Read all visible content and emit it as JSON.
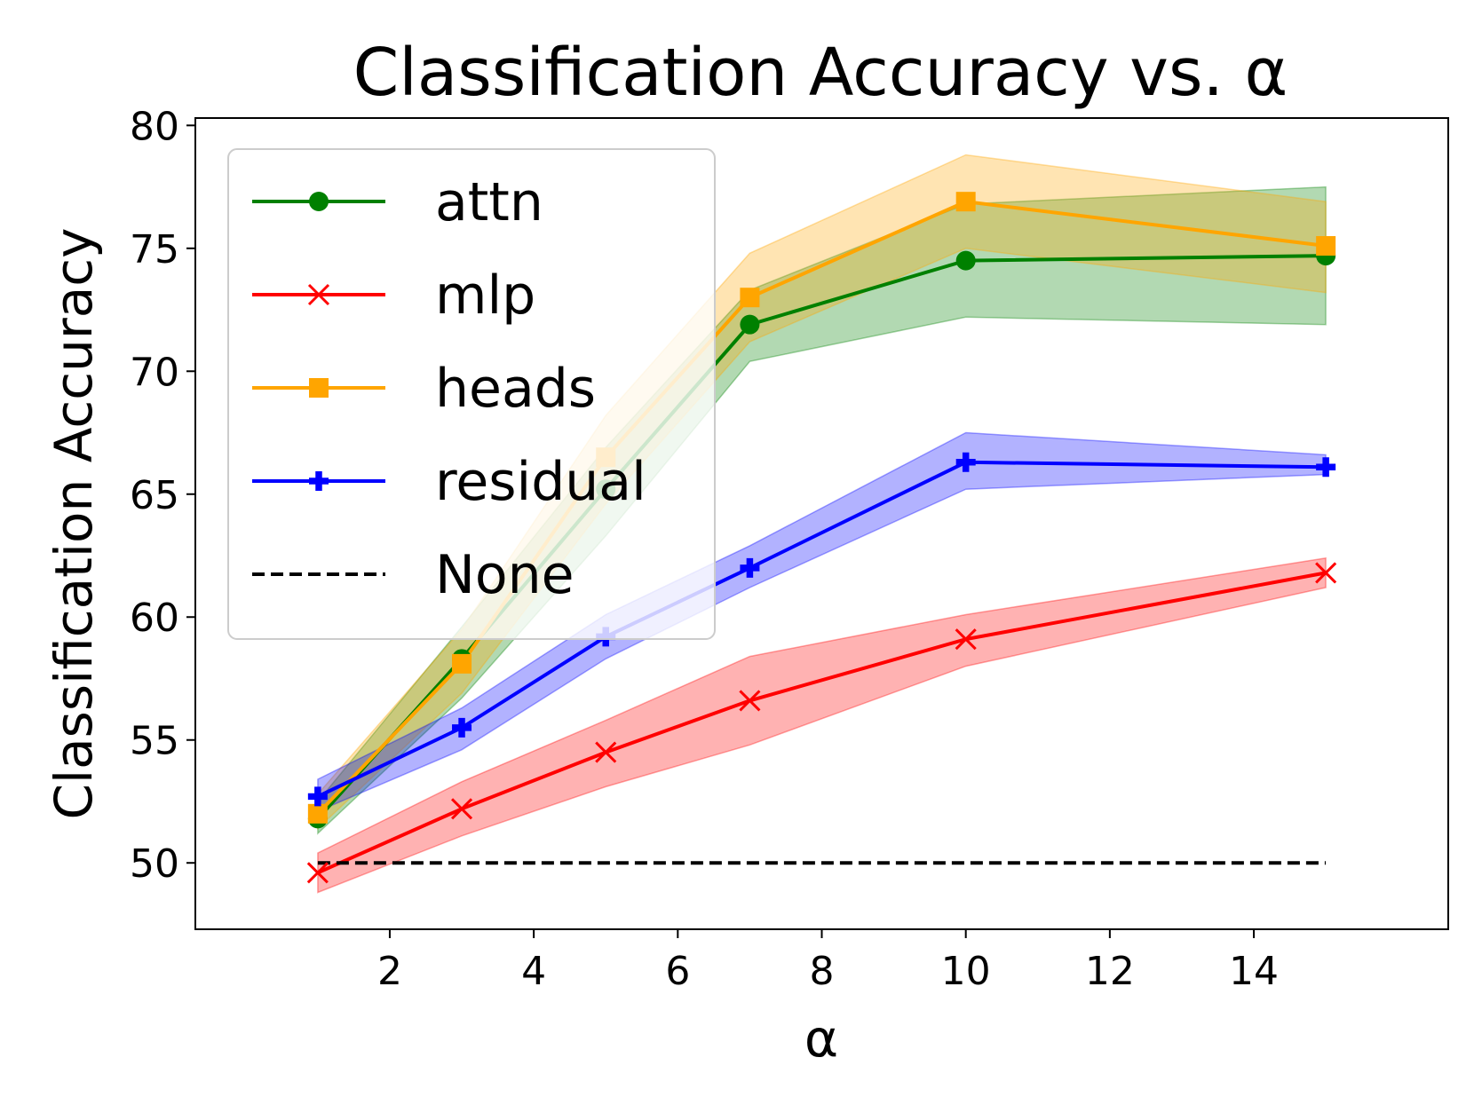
{
  "chart_data": {
    "type": "line",
    "title": "Classification Accuracy vs. α",
    "xlabel": "α",
    "ylabel": "Classification Accuracy",
    "x": [
      1,
      3,
      5,
      7,
      10,
      15
    ],
    "xlim": [
      -0.7,
      16.7
    ],
    "ylim": [
      47.3,
      80.3
    ],
    "xticks": [
      2,
      4,
      6,
      8,
      10,
      12,
      14
    ],
    "yticks": [
      50,
      55,
      60,
      65,
      70,
      75,
      80
    ],
    "grid": false,
    "legend_position": "upper-left",
    "series": [
      {
        "name": "attn",
        "color": "#008000",
        "marker": "circle",
        "linestyle": "solid",
        "values": [
          51.8,
          58.3,
          65.2,
          71.9,
          74.5,
          74.7
        ],
        "lower": [
          51.2,
          56.7,
          63.3,
          70.4,
          72.2,
          71.9
        ],
        "upper": [
          52.5,
          59.6,
          66.9,
          73.3,
          76.8,
          77.5
        ]
      },
      {
        "name": "mlp",
        "color": "#ff0000",
        "marker": "x",
        "linestyle": "solid",
        "values": [
          49.6,
          52.2,
          54.5,
          56.6,
          59.1,
          61.8
        ],
        "lower": [
          48.8,
          51.1,
          53.1,
          54.8,
          58.0,
          61.2
        ],
        "upper": [
          50.4,
          53.3,
          55.8,
          58.4,
          60.1,
          62.4
        ]
      },
      {
        "name": "heads",
        "color": "#ffa500",
        "marker": "square",
        "linestyle": "solid",
        "values": [
          52.0,
          58.1,
          66.5,
          73.0,
          76.9,
          75.1
        ],
        "lower": [
          51.4,
          56.9,
          64.6,
          71.2,
          75.0,
          73.2
        ],
        "upper": [
          52.8,
          59.5,
          68.2,
          74.8,
          78.8,
          76.9
        ]
      },
      {
        "name": "residual",
        "color": "#0000ff",
        "marker": "plus",
        "linestyle": "solid",
        "values": [
          52.7,
          55.5,
          59.2,
          62.0,
          66.3,
          66.1
        ],
        "lower": [
          52.1,
          54.6,
          58.3,
          61.2,
          65.2,
          65.8
        ],
        "upper": [
          53.4,
          56.3,
          60.1,
          62.9,
          67.5,
          66.6
        ]
      },
      {
        "name": "None",
        "color": "#000000",
        "marker": "none",
        "linestyle": "dashed",
        "values": [
          50,
          50,
          50,
          50,
          50,
          50
        ]
      }
    ]
  }
}
